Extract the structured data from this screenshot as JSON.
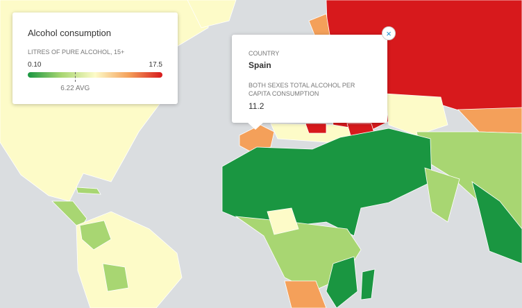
{
  "legend": {
    "title": "Alcohol consumption",
    "subtitle": "LITRES OF PURE ALCOHOL, 15+",
    "min": {
      "value": 0.1,
      "label": "0.10"
    },
    "max": 17.5,
    "avg": {
      "value": 6.22,
      "label": "6.22 AVG"
    }
  },
  "tooltip": {
    "close": "×",
    "country_label": "COUNTRY",
    "country": "Spain",
    "metric_label": "BOTH SEXES TOTAL ALCOHOL PER CAPITA CONSUMPTION",
    "metric_value": 11.2
  }
}
